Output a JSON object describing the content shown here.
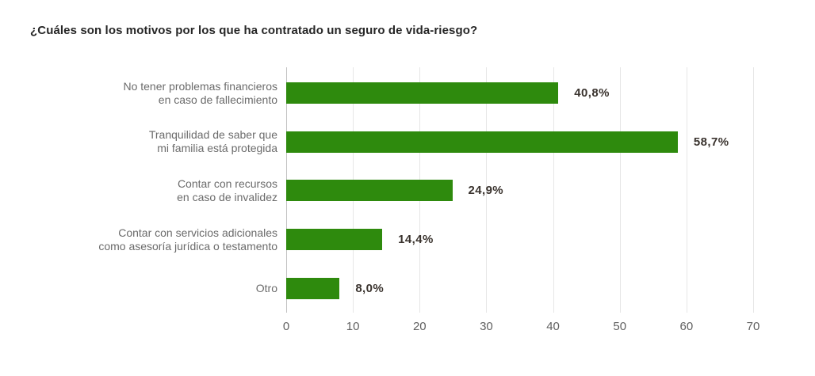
{
  "chart_data": {
    "type": "bar",
    "orientation": "horizontal",
    "title": "¿Cuáles son los motivos por los que ha contratado un seguro de vida-riesgo?",
    "categories": [
      "No tener problemas financieros\nen caso de fallecimiento",
      "Tranquilidad de saber que\nmi familia está protegida",
      "Contar con recursos\nen caso de invalidez",
      "Contar con servicios adicionales\ncomo asesoría jurídica o testamento",
      "Otro"
    ],
    "values": [
      40.8,
      58.7,
      24.9,
      14.4,
      8.0
    ],
    "value_labels": [
      "40,8%",
      "58,7%",
      "24,9%",
      "14,4%",
      "8,0%"
    ],
    "xlabel": "",
    "ylabel": "",
    "xlim": [
      0,
      70
    ],
    "x_ticks": [
      0,
      10,
      20,
      30,
      40,
      50,
      60,
      70
    ],
    "grid": "vertical-gridlines-on",
    "legend": "none",
    "colors": {
      "bar": "#2e8a0d",
      "title_text": "#262626",
      "value_label_text": "#3a332e",
      "category_text": "#6b6b6b",
      "tick_text": "#606060",
      "gridline": "#e6e6e6",
      "zero_axis_line": "#c3c3c3",
      "background": "#ffffff"
    }
  }
}
